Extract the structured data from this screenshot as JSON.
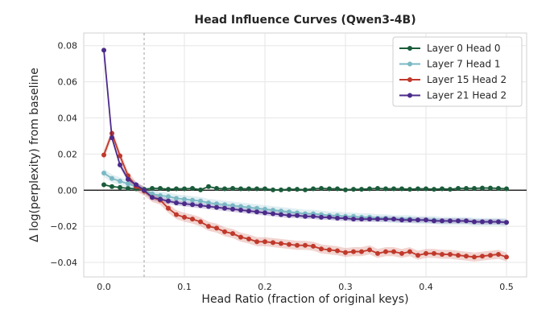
{
  "chart_data": {
    "type": "line",
    "title": "Head Influence Curves (Qwen3-4B)",
    "xlabel": "Head Ratio (fraction of original keys)",
    "ylabel": "Δ log(perplexity) from baseline",
    "xlim": [
      -0.025,
      0.525
    ],
    "ylim": [
      -0.048,
      0.087
    ],
    "x_ticks": [
      0.0,
      0.1,
      0.2,
      0.3,
      0.4,
      0.5
    ],
    "x_tick_labels": [
      "0.0",
      "0.1",
      "0.2",
      "0.3",
      "0.4",
      "0.5"
    ],
    "y_ticks": [
      -0.04,
      -0.02,
      0.0,
      0.02,
      0.04,
      0.06,
      0.08
    ],
    "y_tick_labels": [
      "−0.04",
      "−0.02",
      "0.00",
      "0.02",
      "0.04",
      "0.06",
      "0.08"
    ],
    "grid": true,
    "legend_position": "top-right",
    "reference_lines": {
      "horizontal_y": 0.0,
      "vertical_dashed_x": 0.05
    },
    "x": [
      0.0,
      0.01,
      0.02,
      0.03,
      0.04,
      0.05,
      0.06,
      0.07,
      0.08,
      0.09,
      0.1,
      0.11,
      0.12,
      0.13,
      0.14,
      0.15,
      0.16,
      0.17,
      0.18,
      0.19,
      0.2,
      0.21,
      0.22,
      0.23,
      0.24,
      0.25,
      0.26,
      0.27,
      0.28,
      0.29,
      0.3,
      0.31,
      0.32,
      0.33,
      0.34,
      0.35,
      0.36,
      0.37,
      0.38,
      0.39,
      0.4,
      0.41,
      0.42,
      0.43,
      0.44,
      0.45,
      0.46,
      0.47,
      0.48,
      0.49,
      0.5
    ],
    "series": [
      {
        "name": "Layer 0 Head 0",
        "color": "#1a5c3a",
        "values": [
          0.003,
          0.002,
          0.0015,
          0.001,
          0.0008,
          0.0005,
          0.001,
          0.001,
          0.0005,
          0.0008,
          0.0008,
          0.001,
          0.0002,
          0.002,
          0.001,
          0.0008,
          0.001,
          0.0008,
          0.0008,
          0.0008,
          0.0008,
          0.0002,
          0.0002,
          0.0005,
          0.0005,
          0.0002,
          0.0008,
          0.001,
          0.0008,
          0.0008,
          0.0002,
          0.0005,
          0.0005,
          0.0008,
          0.001,
          0.0008,
          0.0008,
          0.0008,
          0.0005,
          0.0008,
          0.0008,
          0.0005,
          0.0008,
          0.0005,
          0.001,
          0.001,
          0.001,
          0.0012,
          0.0012,
          0.001,
          0.0008
        ],
        "band": 0.0004
      },
      {
        "name": "Layer 7 Head 1",
        "color": "#7ab8c4",
        "values": [
          0.0095,
          0.0065,
          0.005,
          0.0035,
          0.002,
          0.0,
          -0.002,
          -0.003,
          -0.0035,
          -0.0045,
          -0.005,
          -0.0055,
          -0.006,
          -0.007,
          -0.0075,
          -0.008,
          -0.0085,
          -0.009,
          -0.0095,
          -0.01,
          -0.0105,
          -0.011,
          -0.0115,
          -0.012,
          -0.0125,
          -0.013,
          -0.013,
          -0.0135,
          -0.014,
          -0.014,
          -0.0145,
          -0.0145,
          -0.015,
          -0.015,
          -0.0155,
          -0.0155,
          -0.016,
          -0.016,
          -0.016,
          -0.0165,
          -0.0165,
          -0.0165,
          -0.017,
          -0.017,
          -0.017,
          -0.017,
          -0.0175,
          -0.0175,
          -0.0175,
          -0.0175,
          -0.0178
        ],
        "band": 0.0022
      },
      {
        "name": "Layer 15 Head 2",
        "color": "#c0392b",
        "values": [
          0.0195,
          0.0315,
          0.019,
          0.008,
          0.002,
          -0.0005,
          -0.004,
          -0.0055,
          -0.01,
          -0.0135,
          -0.015,
          -0.016,
          -0.0175,
          -0.02,
          -0.021,
          -0.023,
          -0.024,
          -0.026,
          -0.027,
          -0.0285,
          -0.0285,
          -0.029,
          -0.0295,
          -0.03,
          -0.0305,
          -0.0305,
          -0.031,
          -0.0325,
          -0.033,
          -0.0335,
          -0.0345,
          -0.034,
          -0.034,
          -0.033,
          -0.035,
          -0.034,
          -0.034,
          -0.035,
          -0.034,
          -0.036,
          -0.035,
          -0.035,
          -0.0355,
          -0.0355,
          -0.036,
          -0.0365,
          -0.037,
          -0.0365,
          -0.036,
          -0.0355,
          -0.037
        ],
        "band": 0.0025
      },
      {
        "name": "Layer 21 Head 2",
        "color": "#4b2a8a",
        "values": [
          0.0775,
          0.029,
          0.014,
          0.006,
          0.003,
          0.0,
          -0.004,
          -0.005,
          -0.006,
          -0.007,
          -0.0075,
          -0.008,
          -0.0085,
          -0.009,
          -0.0095,
          -0.01,
          -0.0105,
          -0.011,
          -0.0115,
          -0.012,
          -0.0125,
          -0.013,
          -0.0135,
          -0.014,
          -0.014,
          -0.0145,
          -0.0145,
          -0.015,
          -0.015,
          -0.0155,
          -0.0155,
          -0.016,
          -0.016,
          -0.016,
          -0.016,
          -0.016,
          -0.016,
          -0.0165,
          -0.0165,
          -0.0165,
          -0.0165,
          -0.017,
          -0.017,
          -0.017,
          -0.017,
          -0.017,
          -0.0175,
          -0.0175,
          -0.0175,
          -0.0175,
          -0.0178
        ],
        "band": 0.0015
      }
    ]
  }
}
